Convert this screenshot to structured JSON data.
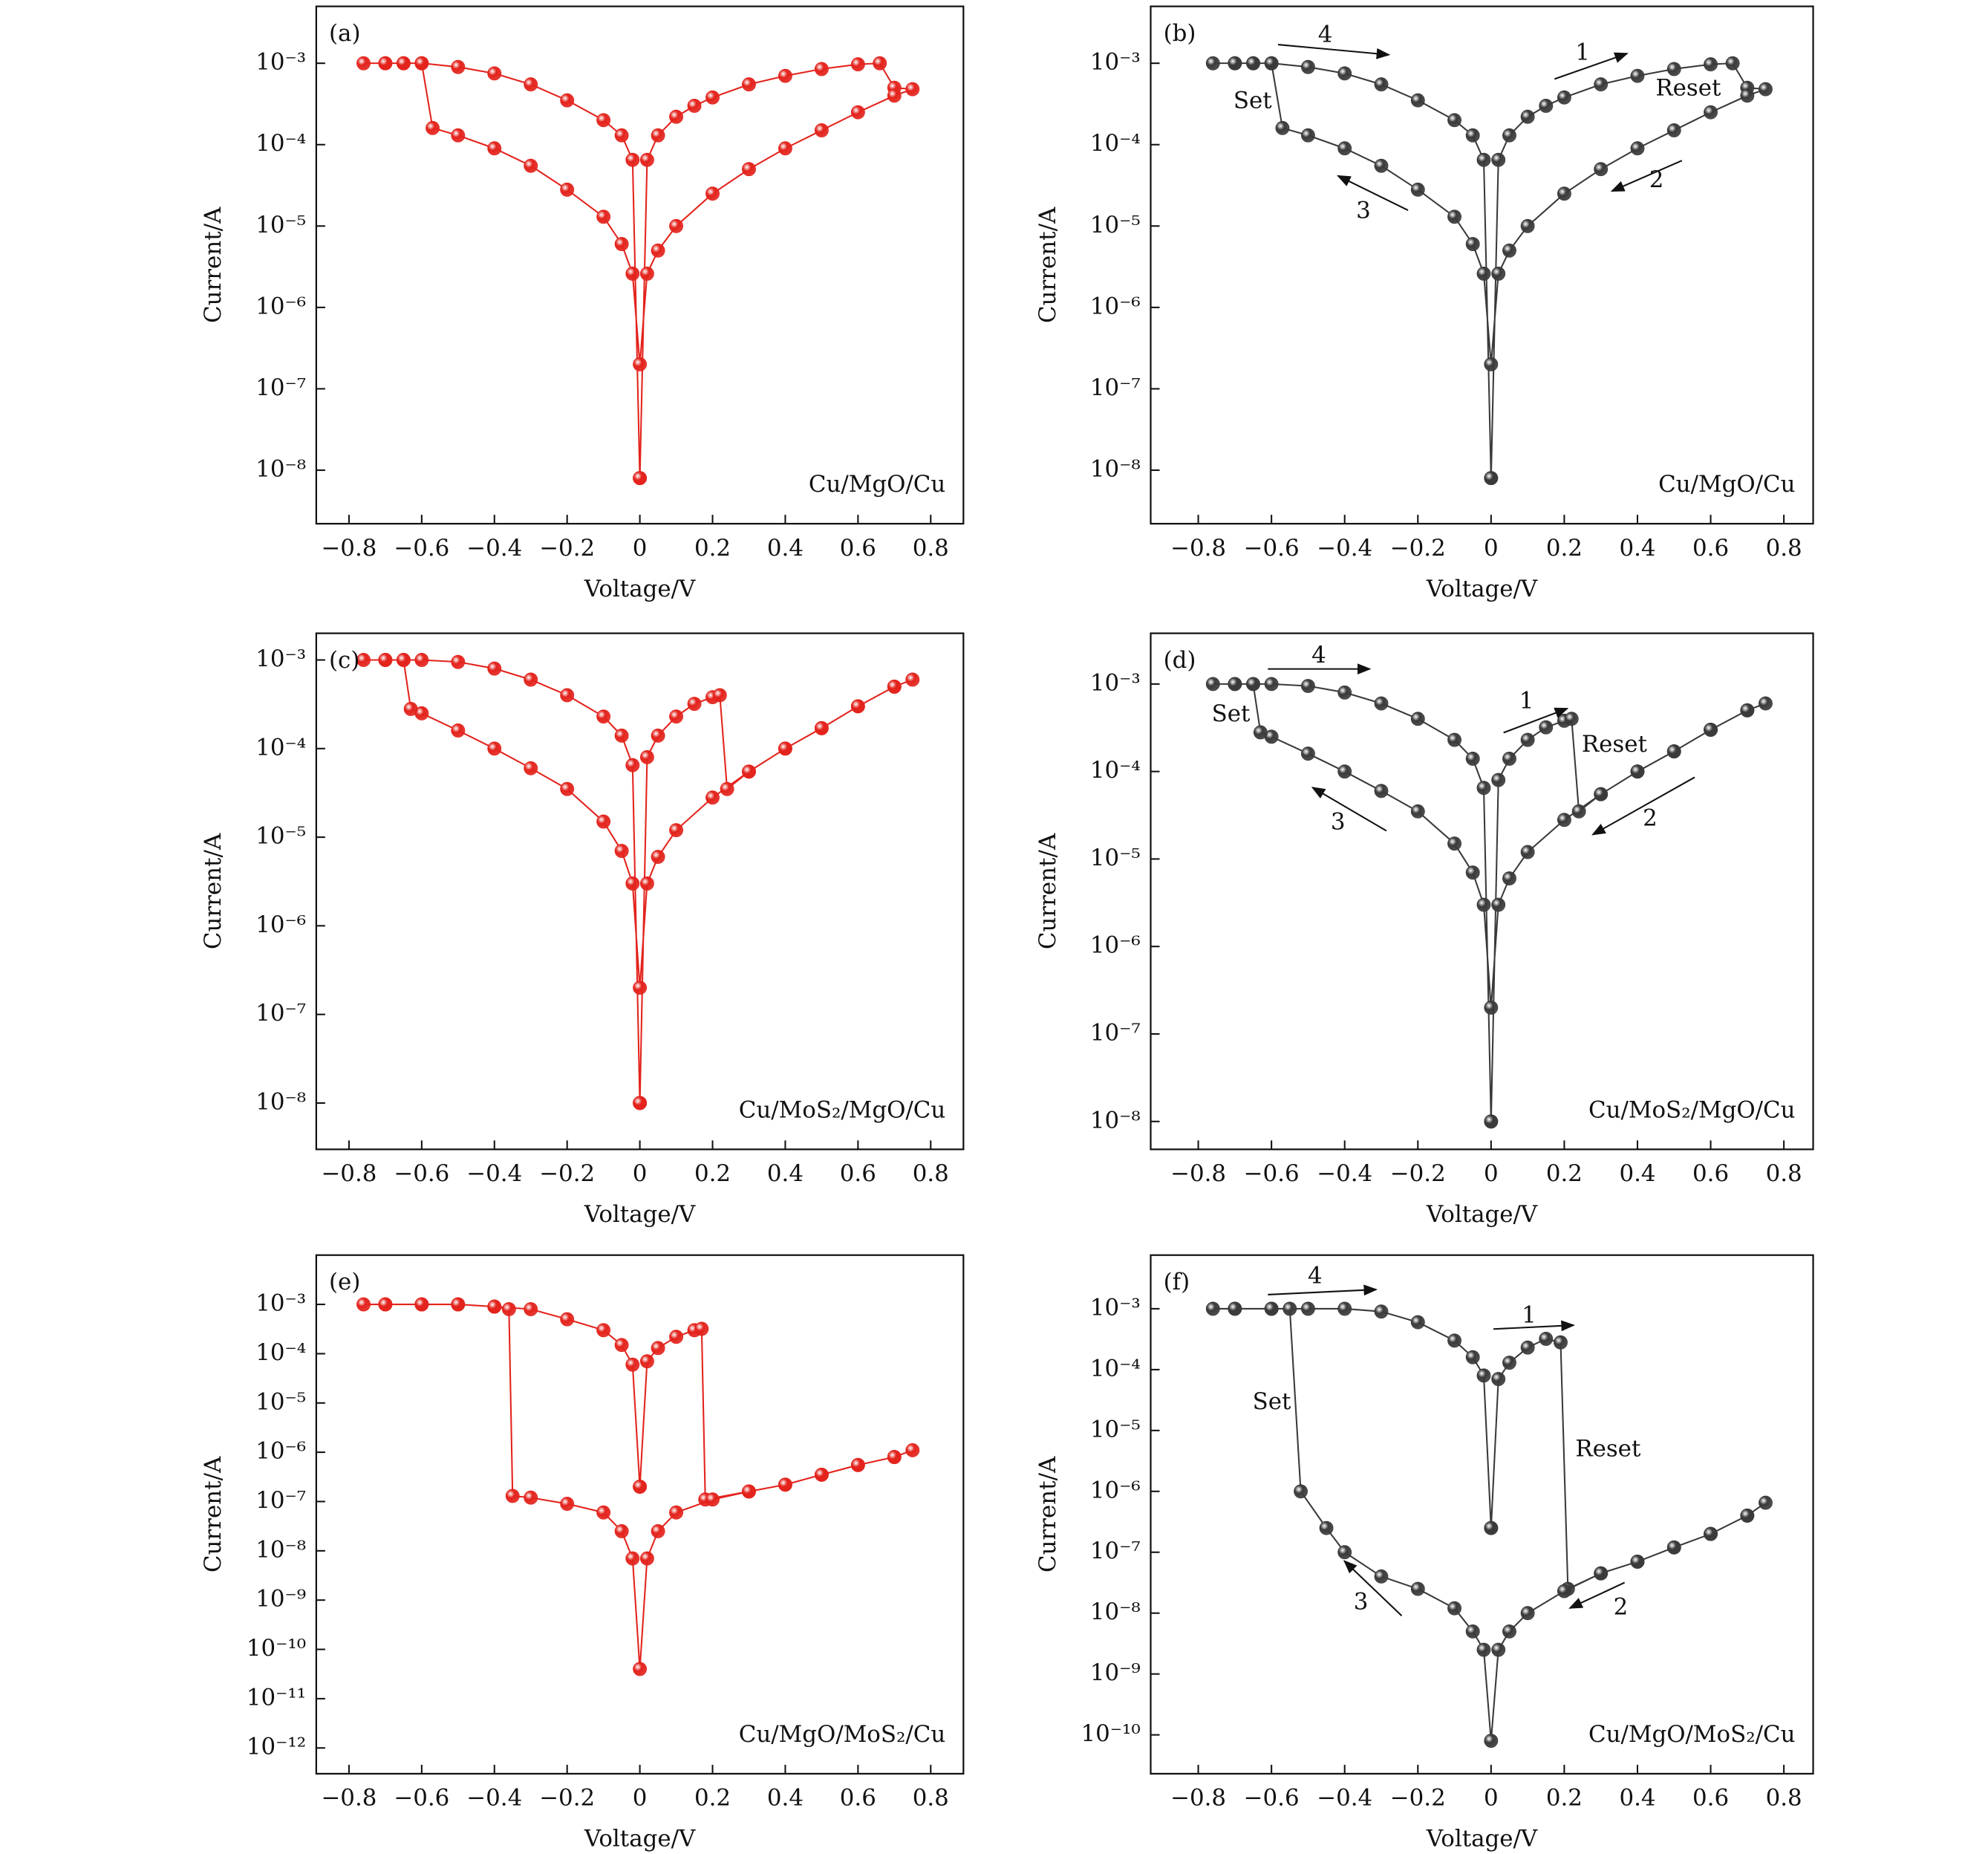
{
  "chart_data": [
    {
      "type": "line",
      "panel_label": "(a)",
      "sample": "Cu/MgO/Cu",
      "xlabel": "Voltage/V",
      "ylabel": "Current/A",
      "log_y": true,
      "annotations": [],
      "x": [
        0,
        0.02,
        0.05,
        0.1,
        0.15,
        0.2,
        0.3,
        0.4,
        0.5,
        0.6,
        0.66,
        0.7,
        0.75,
        0.7,
        0.6,
        0.5,
        0.4,
        0.3,
        0.2,
        0.1,
        0.05,
        0.02,
        0,
        -0.02,
        -0.05,
        -0.1,
        -0.2,
        -0.3,
        -0.4,
        -0.5,
        -0.57,
        -0.6,
        -0.65,
        -0.7,
        -0.76,
        -0.7,
        -0.65,
        -0.6,
        -0.5,
        -0.4,
        -0.3,
        -0.2,
        -0.1,
        -0.05,
        -0.02,
        0
      ],
      "series": [
        {
          "color": "#e3231c",
          "values": [
            8e-09,
            6.5e-05,
            0.00013,
            0.00022,
            0.0003,
            0.00038,
            0.00055,
            0.0007,
            0.00085,
            0.00097,
            0.001,
            0.0005,
            0.00048,
            0.0004,
            0.00025,
            0.00015,
            9e-05,
            5e-05,
            2.5e-05,
            1e-05,
            5e-06,
            2.6e-06,
            2e-07,
            2.6e-06,
            6e-06,
            1.3e-05,
            2.8e-05,
            5.5e-05,
            9e-05,
            0.00013,
            0.00016,
            0.001,
            0.001,
            0.001,
            0.001,
            0.001,
            0.001,
            0.001,
            0.0009,
            0.00075,
            0.00055,
            0.00035,
            0.0002,
            0.00013,
            6.5e-05,
            8e-09
          ]
        }
      ],
      "xlim": [
        -0.89,
        0.89
      ],
      "ylim": [
        2.2e-09,
        0.005
      ],
      "xticks": [
        {
          "value": -0.8,
          "label": "−0.8"
        },
        {
          "value": -0.6,
          "label": "−0.6"
        },
        {
          "value": -0.4,
          "label": "−0.4"
        },
        {
          "value": -0.2,
          "label": "−0.2"
        },
        0,
        0.2,
        0.4,
        0.6,
        0.8
      ],
      "yticks": [
        {
          "value": 0.001,
          "label": "10⁻³"
        },
        {
          "value": 0.0001,
          "label": "10⁻⁴"
        },
        {
          "value": 1e-05,
          "label": "10⁻⁵"
        },
        {
          "value": 1e-06,
          "label": "10⁻⁶"
        },
        {
          "value": 1e-07,
          "label": "10⁻⁷"
        },
        {
          "value": 1e-08,
          "label": "10⁻⁸"
        }
      ]
    },
    {
      "type": "line",
      "panel_label": "(b)",
      "sample": "Cu/MgO/Cu",
      "xlabel": "Voltage/V",
      "ylabel": "Current/A",
      "log_y": true,
      "annotations": [
        "4",
        "1",
        "Set",
        "Reset",
        "3",
        "2"
      ],
      "x": [
        0,
        0.02,
        0.05,
        0.1,
        0.15,
        0.2,
        0.3,
        0.4,
        0.5,
        0.6,
        0.66,
        0.7,
        0.75,
        0.7,
        0.6,
        0.5,
        0.4,
        0.3,
        0.2,
        0.1,
        0.05,
        0.02,
        0,
        -0.02,
        -0.05,
        -0.1,
        -0.2,
        -0.3,
        -0.4,
        -0.5,
        -0.57,
        -0.6,
        -0.65,
        -0.7,
        -0.76,
        -0.7,
        -0.65,
        -0.6,
        -0.5,
        -0.4,
        -0.3,
        -0.2,
        -0.1,
        -0.05,
        -0.02,
        0
      ],
      "series": [
        {
          "color": "#3a3a3a",
          "values": [
            8e-09,
            6.5e-05,
            0.00013,
            0.00022,
            0.0003,
            0.00038,
            0.00055,
            0.0007,
            0.00085,
            0.00097,
            0.001,
            0.0005,
            0.00048,
            0.0004,
            0.00025,
            0.00015,
            9e-05,
            5e-05,
            2.5e-05,
            1e-05,
            5e-06,
            2.6e-06,
            2e-07,
            2.6e-06,
            6e-06,
            1.3e-05,
            2.8e-05,
            5.5e-05,
            9e-05,
            0.00013,
            0.00016,
            0.001,
            0.001,
            0.001,
            0.001,
            0.001,
            0.001,
            0.001,
            0.0009,
            0.00075,
            0.00055,
            0.00035,
            0.0002,
            0.00013,
            6.5e-05,
            8e-09
          ]
        }
      ],
      "xlim": [
        -0.93,
        0.88
      ],
      "ylim": [
        2.2e-09,
        0.005
      ],
      "xticks": [
        {
          "value": -0.8,
          "label": "−0.8"
        },
        {
          "value": -0.6,
          "label": "−0.6"
        },
        {
          "value": -0.4,
          "label": "−0.4"
        },
        {
          "value": -0.2,
          "label": "−0.2"
        },
        0,
        0.2,
        0.4,
        0.6,
        0.8
      ],
      "yticks": [
        {
          "value": 0.001,
          "label": "10⁻³"
        },
        {
          "value": 0.0001,
          "label": "10⁻⁴"
        },
        {
          "value": 1e-05,
          "label": "10⁻⁵"
        },
        {
          "value": 1e-06,
          "label": "10⁻⁶"
        },
        {
          "value": 1e-07,
          "label": "10⁻⁷"
        },
        {
          "value": 1e-08,
          "label": "10⁻⁸"
        }
      ]
    },
    {
      "type": "line",
      "panel_label": "(c)",
      "sample": "Cu/MoS₂/MgO/Cu",
      "xlabel": "Voltage/V",
      "ylabel": "Current/A",
      "log_y": true,
      "annotations": [],
      "x": [
        0,
        0.02,
        0.05,
        0.1,
        0.15,
        0.2,
        0.22,
        0.24,
        0.3,
        0.4,
        0.5,
        0.6,
        0.7,
        0.75,
        0.7,
        0.6,
        0.5,
        0.4,
        0.3,
        0.2,
        0.1,
        0.05,
        0.02,
        0,
        -0.02,
        -0.05,
        -0.1,
        -0.2,
        -0.3,
        -0.4,
        -0.5,
        -0.6,
        -0.63,
        -0.65,
        -0.7,
        -0.76,
        -0.7,
        -0.65,
        -0.6,
        -0.5,
        -0.4,
        -0.3,
        -0.2,
        -0.1,
        -0.05,
        -0.02,
        0
      ],
      "series": [
        {
          "color": "#e3231c",
          "values": [
            1e-08,
            8e-05,
            0.00014,
            0.00023,
            0.00032,
            0.00038,
            0.0004,
            3.5e-05,
            5.5e-05,
            0.0001,
            0.00017,
            0.0003,
            0.0005,
            0.0006,
            0.0005,
            0.0003,
            0.00017,
            0.0001,
            5.5e-05,
            2.8e-05,
            1.2e-05,
            6e-06,
            3e-06,
            2e-07,
            3e-06,
            7e-06,
            1.5e-05,
            3.5e-05,
            6e-05,
            0.0001,
            0.00016,
            0.00025,
            0.00028,
            0.001,
            0.001,
            0.001,
            0.001,
            0.001,
            0.001,
            0.00095,
            0.0008,
            0.0006,
            0.0004,
            0.00023,
            0.00014,
            6.5e-05,
            1e-08
          ]
        }
      ],
      "xlim": [
        -0.89,
        0.89
      ],
      "ylim": [
        3e-09,
        0.002
      ],
      "xticks": [
        {
          "value": -0.8,
          "label": "−0.8"
        },
        {
          "value": -0.6,
          "label": "−0.6"
        },
        {
          "value": -0.4,
          "label": "−0.4"
        },
        {
          "value": -0.2,
          "label": "−0.2"
        },
        0,
        0.2,
        0.4,
        0.6,
        0.8
      ],
      "yticks": [
        {
          "value": 0.001,
          "label": "10⁻³"
        },
        {
          "value": 0.0001,
          "label": "10⁻⁴"
        },
        {
          "value": 1e-05,
          "label": "10⁻⁵"
        },
        {
          "value": 1e-06,
          "label": "10⁻⁶"
        },
        {
          "value": 1e-07,
          "label": "10⁻⁷"
        },
        {
          "value": 1e-08,
          "label": "10⁻⁸"
        }
      ]
    },
    {
      "type": "line",
      "panel_label": "(d)",
      "sample": "Cu/MoS₂/MgO/Cu",
      "xlabel": "Voltage/V",
      "ylabel": "Current/A",
      "log_y": true,
      "annotations": [
        "4",
        "1",
        "Set",
        "Reset",
        "3",
        "2"
      ],
      "x": [
        0,
        0.02,
        0.05,
        0.1,
        0.15,
        0.2,
        0.22,
        0.24,
        0.3,
        0.4,
        0.5,
        0.6,
        0.7,
        0.75,
        0.7,
        0.6,
        0.5,
        0.4,
        0.3,
        0.2,
        0.1,
        0.05,
        0.02,
        0,
        -0.02,
        -0.05,
        -0.1,
        -0.2,
        -0.3,
        -0.4,
        -0.5,
        -0.6,
        -0.63,
        -0.65,
        -0.7,
        -0.76,
        -0.7,
        -0.65,
        -0.6,
        -0.5,
        -0.4,
        -0.3,
        -0.2,
        -0.1,
        -0.05,
        -0.02,
        0
      ],
      "series": [
        {
          "color": "#3a3a3a",
          "values": [
            1e-08,
            8e-05,
            0.00014,
            0.00023,
            0.00032,
            0.00038,
            0.0004,
            3.5e-05,
            5.5e-05,
            0.0001,
            0.00017,
            0.0003,
            0.0005,
            0.0006,
            0.0005,
            0.0003,
            0.00017,
            0.0001,
            5.5e-05,
            2.8e-05,
            1.2e-05,
            6e-06,
            3e-06,
            2e-07,
            3e-06,
            7e-06,
            1.5e-05,
            3.5e-05,
            6e-05,
            0.0001,
            0.00016,
            0.00025,
            0.00028,
            0.001,
            0.001,
            0.001,
            0.001,
            0.001,
            0.001,
            0.00095,
            0.0008,
            0.0006,
            0.0004,
            0.00023,
            0.00014,
            6.5e-05,
            1e-08
          ]
        }
      ],
      "xlim": [
        -0.93,
        0.88
      ],
      "ylim": [
        4.8e-09,
        0.0038
      ],
      "xticks": [
        {
          "value": -0.8,
          "label": "−0.8"
        },
        {
          "value": -0.6,
          "label": "−0.6"
        },
        {
          "value": -0.4,
          "label": "−0.4"
        },
        {
          "value": -0.2,
          "label": "−0.2"
        },
        0,
        0.2,
        0.4,
        0.6,
        0.8
      ],
      "yticks": [
        {
          "value": 0.001,
          "label": "10⁻³"
        },
        {
          "value": 0.0001,
          "label": "10⁻⁴"
        },
        {
          "value": 1e-05,
          "label": "10⁻⁵"
        },
        {
          "value": 1e-06,
          "label": "10⁻⁶"
        },
        {
          "value": 1e-07,
          "label": "10⁻⁷"
        },
        {
          "value": 1e-08,
          "label": "10⁻⁸"
        }
      ]
    },
    {
      "type": "line",
      "panel_label": "(e)",
      "sample": "Cu/MgO/MoS₂/Cu",
      "xlabel": "Voltage/V",
      "ylabel": "Current/A",
      "log_y": true,
      "annotations": [],
      "x": [
        0,
        0.02,
        0.05,
        0.1,
        0.15,
        0.17,
        0.18,
        0.3,
        0.4,
        0.5,
        0.6,
        0.7,
        0.75,
        0.7,
        0.6,
        0.5,
        0.4,
        0.3,
        0.2,
        0.1,
        0.05,
        0.02,
        0,
        -0.02,
        -0.05,
        -0.1,
        -0.2,
        -0.3,
        -0.35,
        -0.36,
        -0.4,
        -0.5,
        -0.6,
        -0.7,
        -0.76,
        -0.7,
        -0.6,
        -0.5,
        -0.4,
        -0.3,
        -0.2,
        -0.1,
        -0.05,
        -0.02,
        0
      ],
      "series": [
        {
          "color": "#e3231c",
          "values": [
            2e-07,
            7e-05,
            0.00013,
            0.00022,
            0.0003,
            0.00032,
            1.1e-07,
            1.6e-07,
            2.2e-07,
            3.5e-07,
            5.5e-07,
            8e-07,
            1.1e-06,
            8e-07,
            5.5e-07,
            3.5e-07,
            2.2e-07,
            1.6e-07,
            1.1e-07,
            6e-08,
            2.5e-08,
            7e-09,
            4e-11,
            7e-09,
            2.5e-08,
            6e-08,
            9e-08,
            1.2e-07,
            1.3e-07,
            0.0008,
            0.0009,
            0.001,
            0.001,
            0.001,
            0.001,
            0.001,
            0.001,
            0.001,
            0.0009,
            0.0008,
            0.0005,
            0.0003,
            0.00015,
            6e-05,
            2e-07
          ]
        }
      ],
      "xlim": [
        -0.89,
        0.89
      ],
      "ylim": [
        3e-13,
        0.01
      ],
      "xticks": [
        {
          "value": -0.8,
          "label": "−0.8"
        },
        {
          "value": -0.6,
          "label": "−0.6"
        },
        {
          "value": -0.4,
          "label": "−0.4"
        },
        {
          "value": -0.2,
          "label": "−0.2"
        },
        0,
        0.2,
        0.4,
        0.6,
        0.8
      ],
      "yticks": [
        {
          "value": 0.001,
          "label": "10⁻³"
        },
        {
          "value": 0.0001,
          "label": "10⁻⁴"
        },
        {
          "value": 1e-05,
          "label": "10⁻⁵"
        },
        {
          "value": 1e-06,
          "label": "10⁻⁶"
        },
        {
          "value": 1e-07,
          "label": "10⁻⁷"
        },
        {
          "value": 1e-08,
          "label": "10⁻⁸"
        },
        {
          "value": 1e-09,
          "label": "10⁻⁹"
        },
        {
          "value": 1e-10,
          "label": "10⁻¹⁰"
        },
        {
          "value": 1e-11,
          "label": "10⁻¹¹"
        },
        {
          "value": 1e-12,
          "label": "10⁻¹²"
        }
      ]
    },
    {
      "type": "line",
      "panel_label": "(f)",
      "sample": "Cu/MgO/MoS₂/Cu",
      "xlabel": "Voltage/V",
      "ylabel": "Current/A",
      "log_y": true,
      "annotations": [
        "4",
        "1",
        "Set",
        "Reset",
        "3",
        "2"
      ],
      "x": [
        0,
        0.02,
        0.05,
        0.1,
        0.15,
        0.19,
        0.21,
        0.3,
        0.4,
        0.5,
        0.6,
        0.7,
        0.75,
        0.7,
        0.6,
        0.5,
        0.4,
        0.3,
        0.2,
        0.1,
        0.05,
        0.02,
        0,
        -0.02,
        -0.05,
        -0.1,
        -0.2,
        -0.3,
        -0.4,
        -0.45,
        -0.52,
        -0.55,
        -0.6,
        -0.7,
        -0.76,
        -0.7,
        -0.6,
        -0.5,
        -0.4,
        -0.3,
        -0.2,
        -0.1,
        -0.05,
        -0.02,
        0
      ],
      "series": [
        {
          "color": "#3a3a3a",
          "values": [
            2.5e-07,
            7e-05,
            0.00013,
            0.00023,
            0.00032,
            0.00028,
            2.5e-08,
            4.5e-08,
            7e-08,
            1.2e-07,
            2e-07,
            4e-07,
            6.5e-07,
            4e-07,
            2e-07,
            1.2e-07,
            7e-08,
            4.5e-08,
            2.3e-08,
            1e-08,
            5e-09,
            2.5e-09,
            8e-11,
            2.5e-09,
            5e-09,
            1.2e-08,
            2.5e-08,
            4e-08,
            1e-07,
            2.5e-07,
            1e-06,
            0.001,
            0.001,
            0.001,
            0.001,
            0.001,
            0.001,
            0.001,
            0.001,
            0.0009,
            0.0006,
            0.0003,
            0.00016,
            8e-05,
            2.5e-07
          ]
        }
      ],
      "xlim": [
        -0.93,
        0.88
      ],
      "ylim": [
        2.3e-11,
        0.0076
      ],
      "xticks": [
        {
          "value": -0.8,
          "label": "−0.8"
        },
        {
          "value": -0.6,
          "label": "−0.6"
        },
        {
          "value": -0.4,
          "label": "−0.4"
        },
        {
          "value": -0.2,
          "label": "−0.2"
        },
        0,
        0.2,
        0.4,
        0.6,
        0.8
      ],
      "yticks": [
        {
          "value": 0.001,
          "label": "10⁻³"
        },
        {
          "value": 0.0001,
          "label": "10⁻⁴"
        },
        {
          "value": 1e-05,
          "label": "10⁻⁵"
        },
        {
          "value": 1e-06,
          "label": "10⁻⁶"
        },
        {
          "value": 1e-07,
          "label": "10⁻⁷"
        },
        {
          "value": 1e-08,
          "label": "10⁻⁸"
        },
        {
          "value": 1e-09,
          "label": "10⁻⁹"
        },
        {
          "value": 1e-10,
          "label": "10⁻¹⁰"
        }
      ]
    }
  ]
}
